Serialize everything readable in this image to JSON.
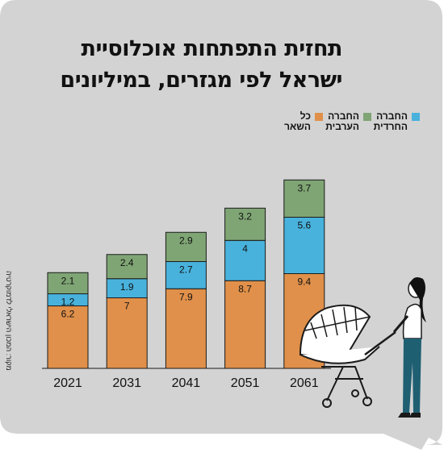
{
  "title_line1": "תחזית התפתחות אוכלוסיית",
  "title_line2": "ישראל לפי מגזרים, במיליונים",
  "source": "מקור: המכון הישראלי לדמוקרטיה",
  "colors": {
    "background": "#d3d3d3",
    "orange": "#e0904a",
    "green": "#7fa574",
    "blue": "#48b2dc"
  },
  "chart_data": {
    "type": "bar",
    "stacked": true,
    "categories": [
      "2021",
      "2031",
      "2041",
      "2051",
      "2061"
    ],
    "series": [
      {
        "name": "כל השאר",
        "color": "#e0904a",
        "values": [
          6.2,
          7,
          7.9,
          8.7,
          9.4
        ]
      },
      {
        "name": "החברה החרדית",
        "color": "#48b2dc",
        "values": [
          1.2,
          1.9,
          2.7,
          4,
          5.6
        ]
      },
      {
        "name": "החברה הערבית",
        "color": "#7fa574",
        "values": [
          2.1,
          2.4,
          2.9,
          3.2,
          3.7
        ]
      }
    ],
    "legend_order": [
      "החברה החרדית",
      "החברה הערבית",
      "כל השאר"
    ],
    "legend_placement": "top-right",
    "grid": false
  }
}
